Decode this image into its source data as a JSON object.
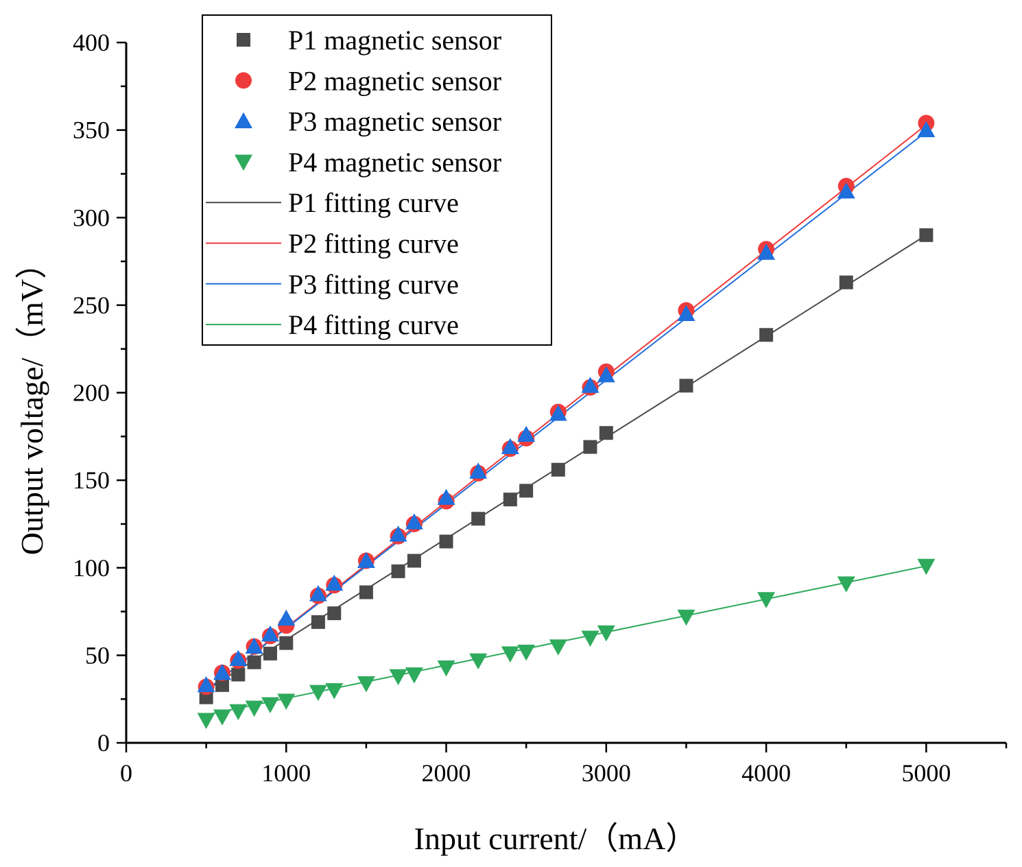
{
  "chart_data": {
    "type": "scatter",
    "title": "",
    "xlabel": "Input current/（mA）",
    "ylabel": "Output voltage/（mV）",
    "xlim": [
      0,
      5500
    ],
    "ylim": [
      0,
      400
    ],
    "xticks": [
      0,
      1000,
      2000,
      3000,
      4000,
      5000
    ],
    "yticks": [
      0,
      50,
      100,
      150,
      200,
      250,
      300,
      350,
      400
    ],
    "x": [
      500,
      600,
      700,
      800,
      900,
      1000,
      1200,
      1300,
      1500,
      1700,
      1800,
      2000,
      2200,
      2400,
      2500,
      2700,
      2900,
      3000,
      3500,
      4000,
      4500,
      5000
    ],
    "series": [
      {
        "name": "P1 magnetic sensor",
        "marker": "square",
        "color": "#4a4a4a",
        "values": [
          26,
          33,
          39,
          46,
          51,
          57,
          69,
          74,
          86,
          98,
          104,
          115,
          128,
          139,
          144,
          156,
          169,
          177,
          204,
          233,
          263,
          290
        ]
      },
      {
        "name": "P2 magnetic sensor",
        "marker": "circle",
        "color": "#ee3b3b",
        "values": [
          32,
          40,
          47,
          55,
          61,
          67,
          84,
          90,
          104,
          118,
          125,
          138,
          154,
          168,
          174,
          189,
          203,
          212,
          247,
          282,
          318,
          354
        ]
      },
      {
        "name": "P3 magnetic sensor",
        "marker": "triangle-up",
        "color": "#1f6fdc",
        "values": [
          33,
          40,
          48,
          55,
          62,
          71,
          85,
          91,
          104,
          119,
          126,
          140,
          155,
          169,
          176,
          188,
          204,
          210,
          245,
          280,
          315,
          350
        ]
      },
      {
        "name": "P4 magnetic sensor",
        "marker": "triangle-down",
        "color": "#2eaa5c",
        "values": [
          13,
          15,
          18,
          20,
          22,
          24,
          29,
          30,
          34,
          38,
          39,
          43,
          47,
          51,
          52,
          55,
          60,
          63,
          72,
          82,
          91,
          101
        ]
      }
    ],
    "fits": [
      {
        "name": "P1 fitting curve",
        "color": "#4a4a4a",
        "x": [
          500,
          5000
        ],
        "y": [
          30,
          290
        ]
      },
      {
        "name": "P2 fitting curve",
        "color": "#ee3b3b",
        "x": [
          500,
          5000
        ],
        "y": [
          30,
          353
        ]
      },
      {
        "name": "P3 fitting curve",
        "color": "#1f6fdc",
        "x": [
          500,
          5000
        ],
        "y": [
          30,
          349
        ]
      },
      {
        "name": "P4 fitting curve",
        "color": "#2eaa5c",
        "x": [
          500,
          5000
        ],
        "y": [
          16,
          101
        ]
      }
    ],
    "legend": "top-left"
  }
}
